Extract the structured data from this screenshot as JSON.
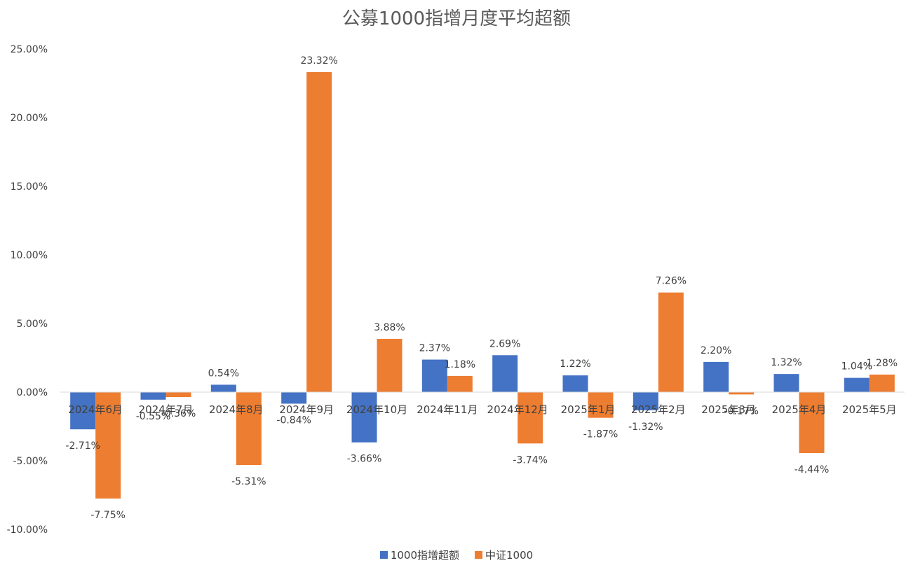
{
  "chart_data": {
    "type": "bar",
    "title": "公募1000指增月度平均超额",
    "xlabel": "",
    "ylabel": "",
    "ylim": [
      -0.1,
      0.25
    ],
    "ytick_step": 0.05,
    "ytick_labels": [
      "25.00%",
      "20.00%",
      "15.00%",
      "10.00%",
      "5.00%",
      "0.00%",
      "-5.00%",
      "-10.00%"
    ],
    "grid": false,
    "legend_position": "bottom",
    "categories": [
      "2024年6月",
      "2024年7月",
      "2024年8月",
      "2024年9月",
      "2024年10月",
      "2024年11月",
      "2024年12月",
      "2025年1月",
      "2025年2月",
      "2025年3月",
      "2025年4月",
      "2025年5月"
    ],
    "series": [
      {
        "name": "1000指增超额",
        "color": "#4472C4",
        "values": [
          -0.0271,
          -0.0055,
          0.0054,
          -0.0084,
          -0.0366,
          0.0237,
          0.0269,
          0.0122,
          -0.0132,
          0.022,
          0.0132,
          0.0104
        ],
        "labels": [
          "-2.71%",
          "-0.55%",
          "0.54%",
          "-0.84%",
          "-3.66%",
          "2.37%",
          "2.69%",
          "1.22%",
          "-1.32%",
          "2.20%",
          "1.32%",
          "1.04%"
        ]
      },
      {
        "name": "中证1000",
        "color": "#ED7D31",
        "values": [
          -0.0775,
          -0.0036,
          -0.0531,
          0.2332,
          0.0388,
          0.0118,
          -0.0374,
          -0.0187,
          0.0726,
          -0.0017,
          -0.0444,
          0.0128
        ],
        "labels": [
          "-7.75%",
          "-0.36%",
          "-5.31%",
          "23.32%",
          "3.88%",
          "1.18%",
          "-3.74%",
          "-1.87%",
          "7.26%",
          "-0.17%",
          "-4.44%",
          "1.28%"
        ]
      }
    ]
  }
}
